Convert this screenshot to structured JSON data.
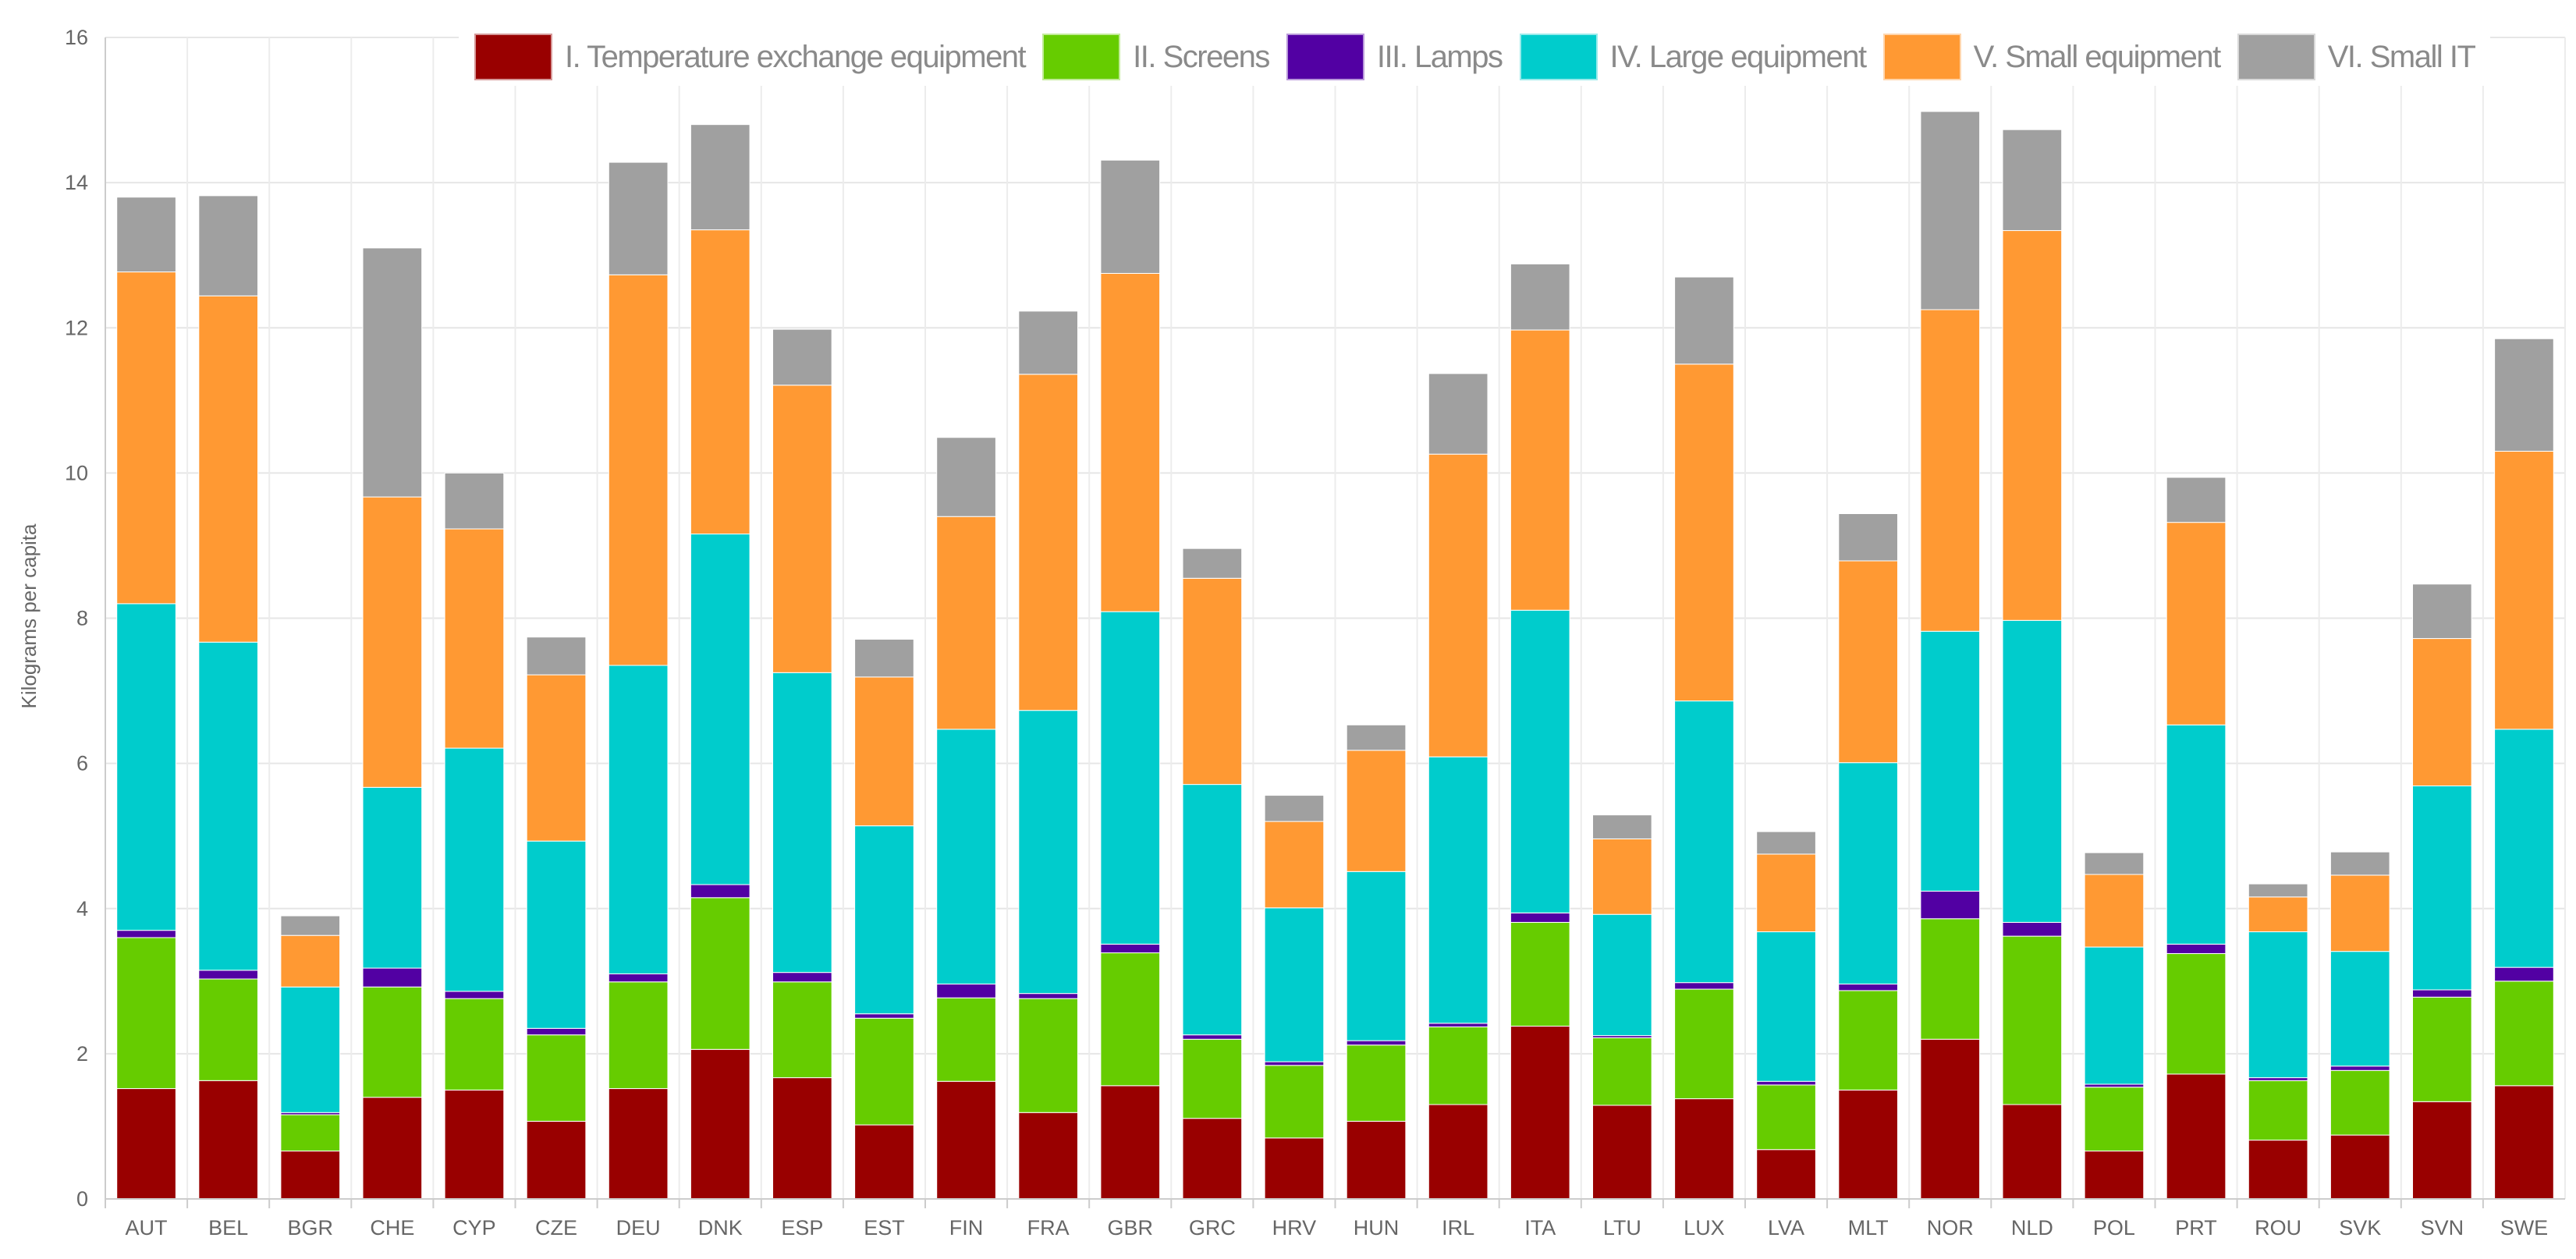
{
  "chart_data": {
    "type": "bar",
    "stacked": true,
    "ylabel": "Kilograms per capita",
    "xlabel": "",
    "ylim": [
      0,
      16
    ],
    "yticks": [
      0,
      2,
      4,
      6,
      8,
      10,
      12,
      14,
      16
    ],
    "grid": true,
    "legend_position": "top",
    "categories": [
      "AUT",
      "BEL",
      "BGR",
      "CHE",
      "CYP",
      "CZE",
      "DEU",
      "DNK",
      "ESP",
      "EST",
      "FIN",
      "FRA",
      "GBR",
      "GRC",
      "HRV",
      "HUN",
      "IRL",
      "ITA",
      "LTU",
      "LUX",
      "LVA",
      "MLT",
      "NOR",
      "NLD",
      "POL",
      "PRT",
      "ROU",
      "SVK",
      "SVN",
      "SWE"
    ],
    "series": [
      {
        "name": "I. Temperature exchange equipment",
        "color": "#990000",
        "values": [
          1.52,
          1.63,
          0.66,
          1.4,
          1.5,
          1.07,
          1.52,
          2.06,
          1.67,
          1.02,
          1.62,
          1.19,
          1.56,
          1.11,
          0.84,
          1.07,
          1.3,
          2.38,
          1.29,
          1.38,
          0.68,
          1.5,
          2.2,
          1.3,
          0.66,
          1.72,
          0.81,
          0.88,
          1.34,
          1.56
        ]
      },
      {
        "name": "II. Screens",
        "color": "#66cc00",
        "values": [
          2.08,
          1.4,
          0.5,
          1.52,
          1.26,
          1.19,
          1.47,
          2.09,
          1.32,
          1.47,
          1.15,
          1.57,
          1.83,
          1.09,
          1.0,
          1.05,
          1.07,
          1.43,
          0.93,
          1.51,
          0.89,
          1.37,
          1.66,
          2.32,
          0.88,
          1.66,
          0.82,
          0.89,
          1.44,
          1.44
        ]
      },
      {
        "name": "III. Lamps",
        "color": "#5200a3",
        "values": [
          0.1,
          0.12,
          0.03,
          0.26,
          0.1,
          0.09,
          0.11,
          0.18,
          0.13,
          0.06,
          0.19,
          0.07,
          0.12,
          0.06,
          0.05,
          0.06,
          0.05,
          0.13,
          0.03,
          0.09,
          0.05,
          0.09,
          0.38,
          0.19,
          0.04,
          0.13,
          0.04,
          0.06,
          0.1,
          0.19
        ]
      },
      {
        "name": "IV. Large equipment",
        "color": "#00cccc",
        "values": [
          4.5,
          4.52,
          1.73,
          2.49,
          3.35,
          2.58,
          4.25,
          4.83,
          4.13,
          2.59,
          3.51,
          3.9,
          4.58,
          3.45,
          2.12,
          2.33,
          3.67,
          4.17,
          1.67,
          3.88,
          2.06,
          3.05,
          3.58,
          4.16,
          1.89,
          3.02,
          2.01,
          1.58,
          2.81,
          3.28
        ]
      },
      {
        "name": "V. Small equipment",
        "color": "#ff9933",
        "values": [
          4.57,
          4.77,
          0.71,
          4.0,
          3.02,
          2.29,
          5.38,
          4.19,
          3.96,
          2.05,
          2.93,
          4.63,
          4.66,
          2.84,
          1.19,
          1.67,
          4.17,
          3.86,
          1.04,
          4.64,
          1.07,
          2.78,
          4.43,
          5.37,
          1.0,
          2.79,
          0.48,
          1.05,
          2.03,
          3.83
        ]
      },
      {
        "name": "VI. Small IT",
        "color": "#a0a0a0",
        "values": [
          1.03,
          1.38,
          0.27,
          3.43,
          0.77,
          0.52,
          1.55,
          1.45,
          0.77,
          0.52,
          1.09,
          0.87,
          1.56,
          0.41,
          0.36,
          0.35,
          1.11,
          0.91,
          0.33,
          1.2,
          0.31,
          0.65,
          2.73,
          1.39,
          0.3,
          0.62,
          0.18,
          0.32,
          0.75,
          1.55
        ]
      }
    ]
  }
}
